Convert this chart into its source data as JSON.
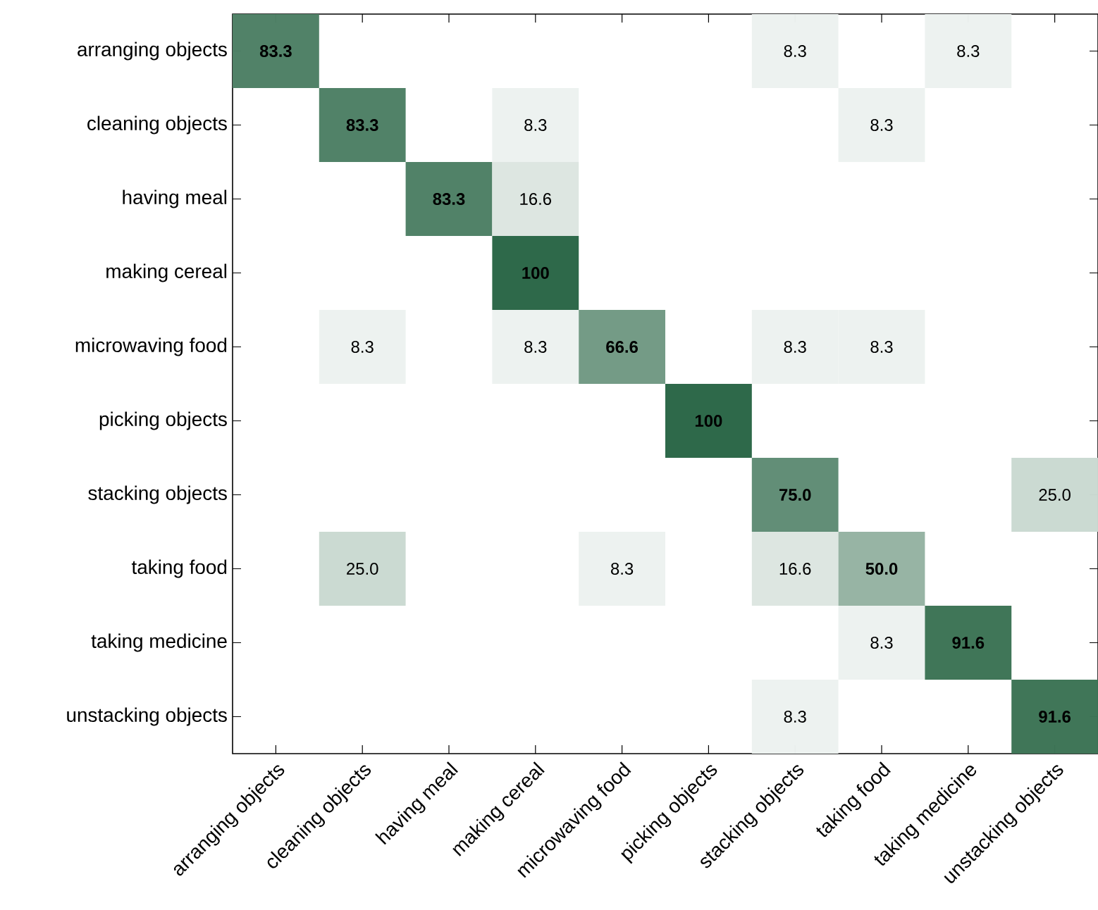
{
  "chart_data": {
    "type": "heatmap",
    "categories": [
      "arranging objects",
      "cleaning objects",
      "having meal",
      "making cereal",
      "microwaving food",
      "picking objects",
      "stacking objects",
      "taking food",
      "taking medicine",
      "unstacking objects"
    ],
    "y_categories": [
      "arranging objects",
      "cleaning objects",
      "having meal",
      "making cereal",
      "microwaving food",
      "picking objects",
      "stacking objects",
      "taking food",
      "taking medicine",
      "unstacking objects"
    ],
    "color": "#1f5e3c",
    "cells": [
      [
        83.3,
        null,
        null,
        null,
        null,
        null,
        8.3,
        null,
        8.3,
        null
      ],
      [
        null,
        83.3,
        null,
        8.3,
        null,
        null,
        null,
        8.3,
        null,
        null
      ],
      [
        null,
        null,
        83.3,
        16.6,
        null,
        null,
        null,
        null,
        null,
        null
      ],
      [
        null,
        null,
        null,
        100,
        null,
        null,
        null,
        null,
        null,
        null
      ],
      [
        null,
        8.3,
        null,
        8.3,
        66.6,
        null,
        8.3,
        8.3,
        null,
        null
      ],
      [
        null,
        null,
        null,
        null,
        null,
        100,
        null,
        null,
        null,
        null
      ],
      [
        null,
        null,
        null,
        null,
        null,
        null,
        75.0,
        null,
        null,
        25.0
      ],
      [
        null,
        25.0,
        null,
        null,
        8.3,
        null,
        16.6,
        50.0,
        null,
        null
      ],
      [
        null,
        null,
        null,
        null,
        null,
        null,
        null,
        8.3,
        91.6,
        null
      ],
      [
        null,
        null,
        null,
        null,
        null,
        null,
        8.3,
        null,
        null,
        91.6
      ]
    ],
    "cell_labels": [
      [
        "83.3",
        null,
        null,
        null,
        null,
        null,
        "8.3",
        null,
        "8.3",
        null
      ],
      [
        null,
        "83.3",
        null,
        "8.3",
        null,
        null,
        null,
        "8.3",
        null,
        null
      ],
      [
        null,
        null,
        "83.3",
        "16.6",
        null,
        null,
        null,
        null,
        null,
        null
      ],
      [
        null,
        null,
        null,
        "100",
        null,
        null,
        null,
        null,
        null,
        null
      ],
      [
        null,
        "8.3",
        null,
        "8.3",
        "66.6",
        null,
        "8.3",
        "8.3",
        null,
        null
      ],
      [
        null,
        null,
        null,
        null,
        null,
        "100",
        null,
        null,
        null,
        null
      ],
      [
        null,
        null,
        null,
        null,
        null,
        null,
        "75.0",
        null,
        null,
        "25.0"
      ],
      [
        null,
        "25.0",
        null,
        null,
        "8.3",
        null,
        "16.6",
        "50.0",
        null,
        null
      ],
      [
        null,
        null,
        null,
        null,
        null,
        null,
        null,
        "8.3",
        "91.6",
        null
      ],
      [
        null,
        null,
        null,
        null,
        null,
        null,
        "8.3",
        null,
        null,
        "91.6"
      ]
    ]
  }
}
